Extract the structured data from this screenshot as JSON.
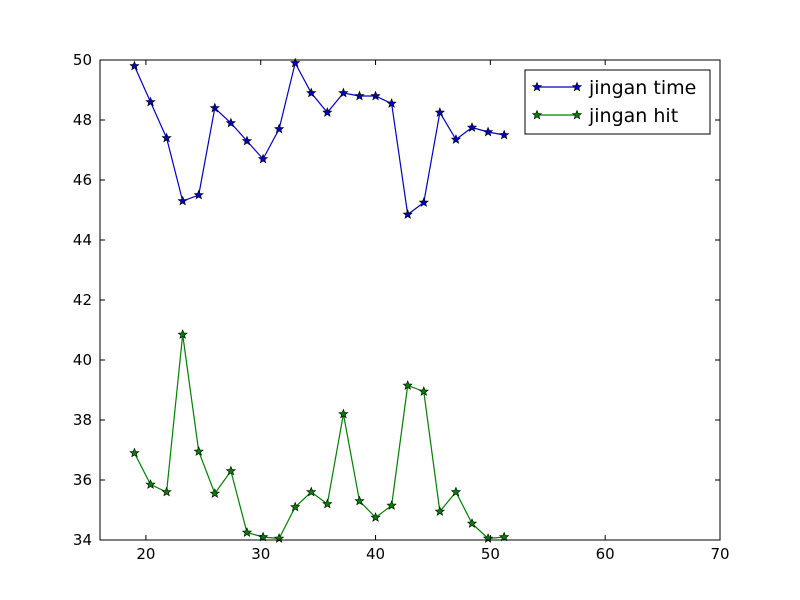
{
  "chart_data": {
    "type": "line",
    "title": "",
    "xlabel": "",
    "ylabel": "",
    "xlim": [
      16,
      70
    ],
    "ylim": [
      34,
      50
    ],
    "xticks": [
      20,
      30,
      40,
      50,
      60,
      70
    ],
    "yticks": [
      34,
      36,
      38,
      40,
      42,
      44,
      46,
      48,
      50
    ],
    "grid": false,
    "legend": "top-right",
    "x": [
      19,
      20.4,
      21.8,
      23.2,
      24.6,
      26,
      27.4,
      28.8,
      30.2,
      31.6,
      33,
      34.4,
      35.8,
      37.2,
      38.6,
      40,
      41.4,
      42.8,
      44.2,
      45.6,
      47,
      48.4,
      49.8,
      51.2
    ],
    "series": [
      {
        "name": "jingan time",
        "color": "#0000bf",
        "marker": "star",
        "values": [
          49.8,
          48.6,
          47.4,
          45.3,
          45.5,
          48.4,
          47.9,
          47.3,
          46.7,
          47.7,
          49.9,
          48.9,
          48.25,
          48.9,
          48.8,
          48.8,
          48.55,
          44.85,
          45.25,
          48.25,
          47.35,
          47.75,
          47.6,
          47.5
        ]
      },
      {
        "name": "jingan hit",
        "color": "#007f00",
        "marker": "star",
        "values": [
          36.9,
          35.85,
          35.6,
          40.85,
          36.95,
          35.55,
          36.3,
          34.25,
          34.1,
          34.05,
          35.1,
          35.6,
          35.2,
          38.2,
          35.3,
          34.75,
          35.15,
          39.15,
          38.95,
          34.95,
          35.6,
          34.55,
          34.05,
          34.1
        ]
      }
    ]
  }
}
